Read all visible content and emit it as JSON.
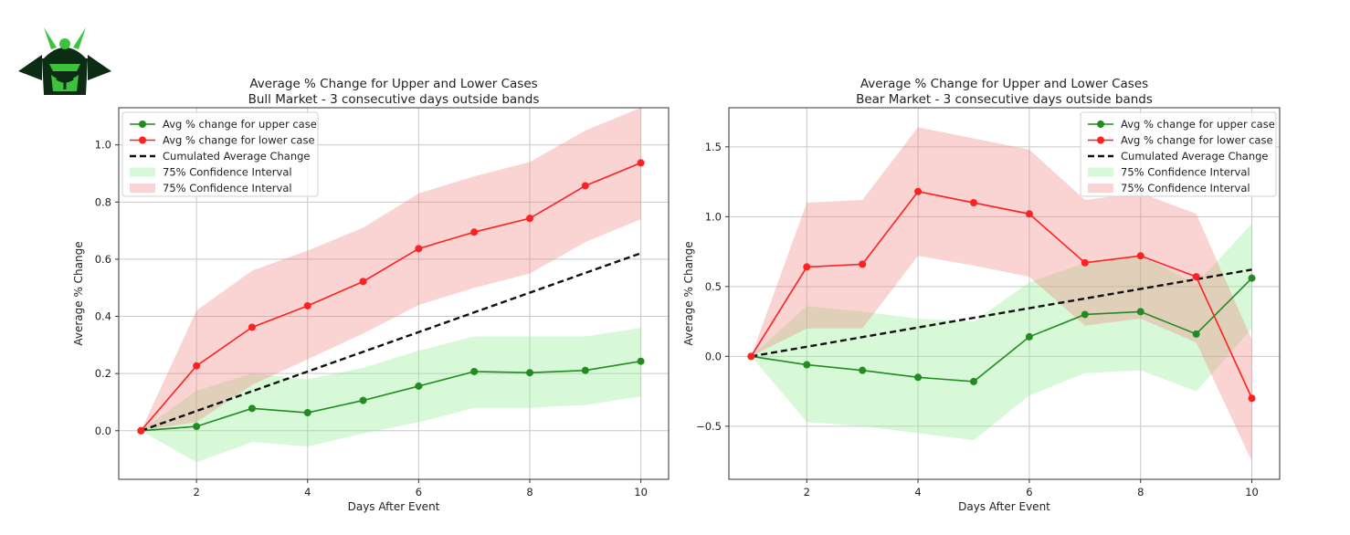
{
  "logo": {
    "icon": "samurai-helmet-logo"
  },
  "chart_data": [
    {
      "type": "line",
      "title": "Average % Change for Upper and Lower Cases",
      "subtitle": "Bull Market - 3 consecutive days outside bands",
      "xlabel": "Days After Event",
      "ylabel": "Average % Change",
      "xlim": [
        0.6,
        10.5
      ],
      "ylim": [
        -0.17,
        1.13
      ],
      "xticks": [
        2,
        4,
        6,
        8,
        10
      ],
      "yticks": [
        0.0,
        0.2,
        0.4,
        0.6,
        0.8,
        1.0
      ],
      "ytick_labels": [
        "0.0",
        "0.2",
        "0.4",
        "0.6",
        "0.8",
        "1.0"
      ],
      "grid": true,
      "legend_position": "top-left",
      "x": [
        1,
        2,
        3,
        4,
        5,
        6,
        7,
        8,
        9,
        10
      ],
      "series": [
        {
          "name": "Avg % change for upper case",
          "color": "#228b22",
          "values": [
            0.0,
            0.015,
            0.078,
            0.063,
            0.106,
            0.156,
            0.207,
            0.203,
            0.211,
            0.243
          ]
        },
        {
          "name": "Avg % change for lower case",
          "color": "#ff2020",
          "values": [
            0.0,
            0.227,
            0.362,
            0.437,
            0.522,
            0.637,
            0.695,
            0.743,
            0.857,
            0.937
          ]
        },
        {
          "name": "Cumulated Average Change",
          "color": "#111111",
          "dashed": true,
          "values": [
            0.0,
            0.069,
            0.138,
            0.207,
            0.276,
            0.345,
            0.414,
            0.483,
            0.552,
            0.621
          ]
        }
      ],
      "bands": [
        {
          "name": "75% Confidence Interval",
          "color": "#90ee90",
          "opacity": 0.35,
          "lower": [
            0.0,
            -0.11,
            -0.04,
            -0.055,
            -0.01,
            0.03,
            0.08,
            0.08,
            0.09,
            0.12
          ],
          "upper": [
            0.0,
            0.14,
            0.2,
            0.18,
            0.22,
            0.28,
            0.33,
            0.33,
            0.33,
            0.36
          ]
        },
        {
          "name": "75% Confidence Interval",
          "color": "#f08080",
          "opacity": 0.35,
          "lower": [
            0.0,
            0.03,
            0.16,
            0.25,
            0.34,
            0.44,
            0.5,
            0.55,
            0.66,
            0.74
          ],
          "upper": [
            0.0,
            0.42,
            0.56,
            0.63,
            0.71,
            0.83,
            0.89,
            0.94,
            1.05,
            1.13
          ]
        }
      ]
    },
    {
      "type": "line",
      "title": "Average % Change for Upper and Lower Cases",
      "subtitle": "Bear Market - 3 consecutive days outside bands",
      "xlabel": "Days After Event",
      "ylabel": "Average % Change",
      "xlim": [
        0.6,
        10.5
      ],
      "ylim": [
        -0.88,
        1.78
      ],
      "xticks": [
        2,
        4,
        6,
        8,
        10
      ],
      "yticks": [
        -0.5,
        0.0,
        0.5,
        1.0,
        1.5
      ],
      "ytick_labels": [
        "−0.5",
        "0.0",
        "0.5",
        "1.0",
        "1.5"
      ],
      "grid": true,
      "legend_position": "top-right",
      "x": [
        1,
        2,
        3,
        4,
        5,
        6,
        7,
        8,
        9,
        10
      ],
      "series": [
        {
          "name": "Avg % change for upper case",
          "color": "#228b22",
          "values": [
            0.0,
            -0.06,
            -0.1,
            -0.15,
            -0.18,
            0.14,
            0.3,
            0.32,
            0.16,
            0.56
          ]
        },
        {
          "name": "Avg % change for lower case",
          "color": "#ff2020",
          "values": [
            0.0,
            0.64,
            0.66,
            1.18,
            1.1,
            1.02,
            0.67,
            0.72,
            0.57,
            -0.3
          ]
        },
        {
          "name": "Cumulated Average Change",
          "color": "#111111",
          "dashed": true,
          "values": [
            0.0,
            0.069,
            0.138,
            0.207,
            0.276,
            0.345,
            0.414,
            0.483,
            0.552,
            0.621
          ]
        }
      ],
      "bands": [
        {
          "name": "75% Confidence Interval",
          "color": "#90ee90",
          "opacity": 0.35,
          "lower": [
            0.0,
            -0.47,
            -0.5,
            -0.55,
            -0.6,
            -0.28,
            -0.12,
            -0.1,
            -0.25,
            0.2
          ],
          "upper": [
            0.0,
            0.36,
            0.32,
            0.27,
            0.25,
            0.53,
            0.67,
            0.72,
            0.52,
            0.95
          ]
        },
        {
          "name": "75% Confidence Interval",
          "color": "#f08080",
          "opacity": 0.35,
          "lower": [
            0.0,
            0.2,
            0.2,
            0.72,
            0.65,
            0.57,
            0.22,
            0.27,
            0.1,
            -0.75
          ],
          "upper": [
            0.0,
            1.1,
            1.12,
            1.64,
            1.56,
            1.48,
            1.12,
            1.17,
            1.02,
            0.12
          ]
        }
      ]
    }
  ]
}
